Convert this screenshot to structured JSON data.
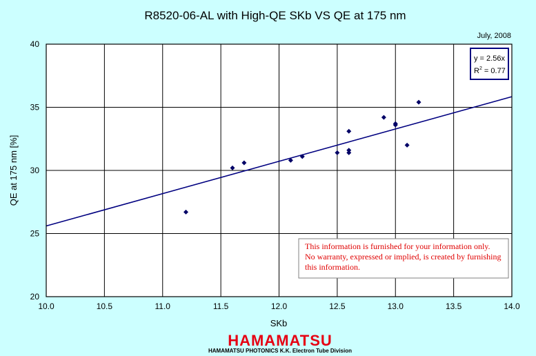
{
  "chart_data": {
    "type": "scatter",
    "title": "R8520-06-AL with High-QE SKb VS QE at 175 nm",
    "xlabel": "SKb",
    "ylabel": "QE at 175 nm [%]",
    "xlim": [
      10.0,
      14.0
    ],
    "ylim": [
      20,
      40
    ],
    "x_ticks": [
      "10.0",
      "10.5",
      "11.0",
      "11.5",
      "12.0",
      "12.5",
      "13.0",
      "13.5",
      "14.0"
    ],
    "y_ticks": [
      "20",
      "25",
      "30",
      "35",
      "40"
    ],
    "grid": true,
    "points": [
      {
        "x": 11.2,
        "y": 26.7
      },
      {
        "x": 11.6,
        "y": 30.2
      },
      {
        "x": 11.7,
        "y": 30.6
      },
      {
        "x": 12.1,
        "y": 30.8
      },
      {
        "x": 12.2,
        "y": 31.1
      },
      {
        "x": 12.5,
        "y": 31.4
      },
      {
        "x": 12.6,
        "y": 31.4
      },
      {
        "x": 12.6,
        "y": 31.6
      },
      {
        "x": 12.6,
        "y": 33.1
      },
      {
        "x": 12.9,
        "y": 34.2
      },
      {
        "x": 13.0,
        "y": 33.6
      },
      {
        "x": 13.0,
        "y": 33.7
      },
      {
        "x": 13.1,
        "y": 32.0
      },
      {
        "x": 13.2,
        "y": 35.4
      }
    ],
    "trendline": {
      "slope": 2.56,
      "intercept": 0
    },
    "annotations": {
      "date": "July, 2008",
      "equation": "y = 2.56x",
      "r2_prefix": "R",
      "r2_sup": "2",
      "r2_value": " = 0.77",
      "disclaimer": [
        "This information is furnished for your information only.",
        "No warranty, expressed or implied, is created by furnishing",
        "this information."
      ]
    },
    "colors": {
      "marker": "#000066",
      "trendline": "#000080",
      "background": "#ccffff",
      "plot_bg": "#ffffff",
      "disclaimer_text": "#e00000"
    }
  },
  "footer": {
    "logo": "HAMAMATSU",
    "subtitle": "HAMAMATSU PHOTONICS K.K. Electron Tube Division"
  }
}
